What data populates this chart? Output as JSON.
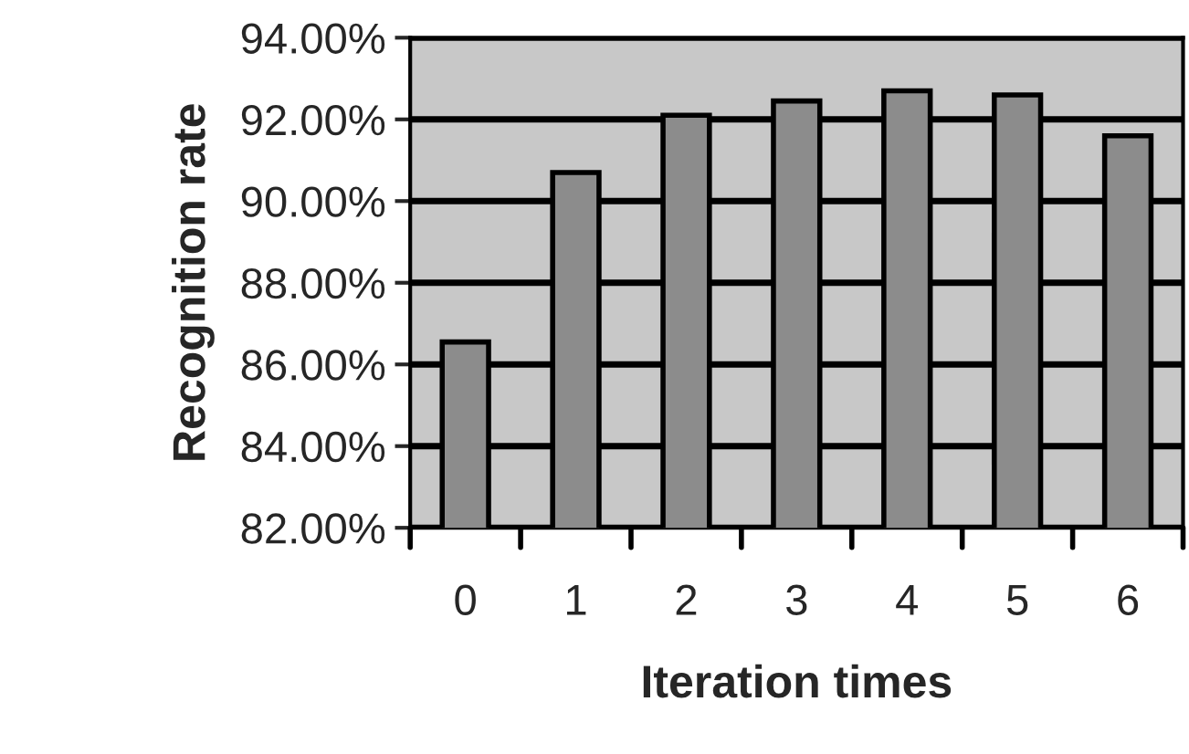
{
  "chart_data": {
    "type": "bar",
    "xlabel": "Iteration times",
    "ylabel": "Recognition rate",
    "categories": [
      "0",
      "1",
      "2",
      "3",
      "4",
      "5",
      "6"
    ],
    "values": [
      86.55,
      90.7,
      92.1,
      92.45,
      92.7,
      92.6,
      91.6
    ],
    "color": "#8c8c8c",
    "ylim": [
      82,
      94
    ],
    "yticks": [
      {
        "value": 82,
        "label": "82.00%"
      },
      {
        "value": 84,
        "label": "84.00%"
      },
      {
        "value": 86,
        "label": "86.00%"
      },
      {
        "value": 88,
        "label": "88.00%"
      },
      {
        "value": 90,
        "label": "90.00%"
      },
      {
        "value": 92,
        "label": "92.00%"
      },
      {
        "value": 94,
        "label": "94.00%"
      }
    ],
    "grid": "y"
  }
}
